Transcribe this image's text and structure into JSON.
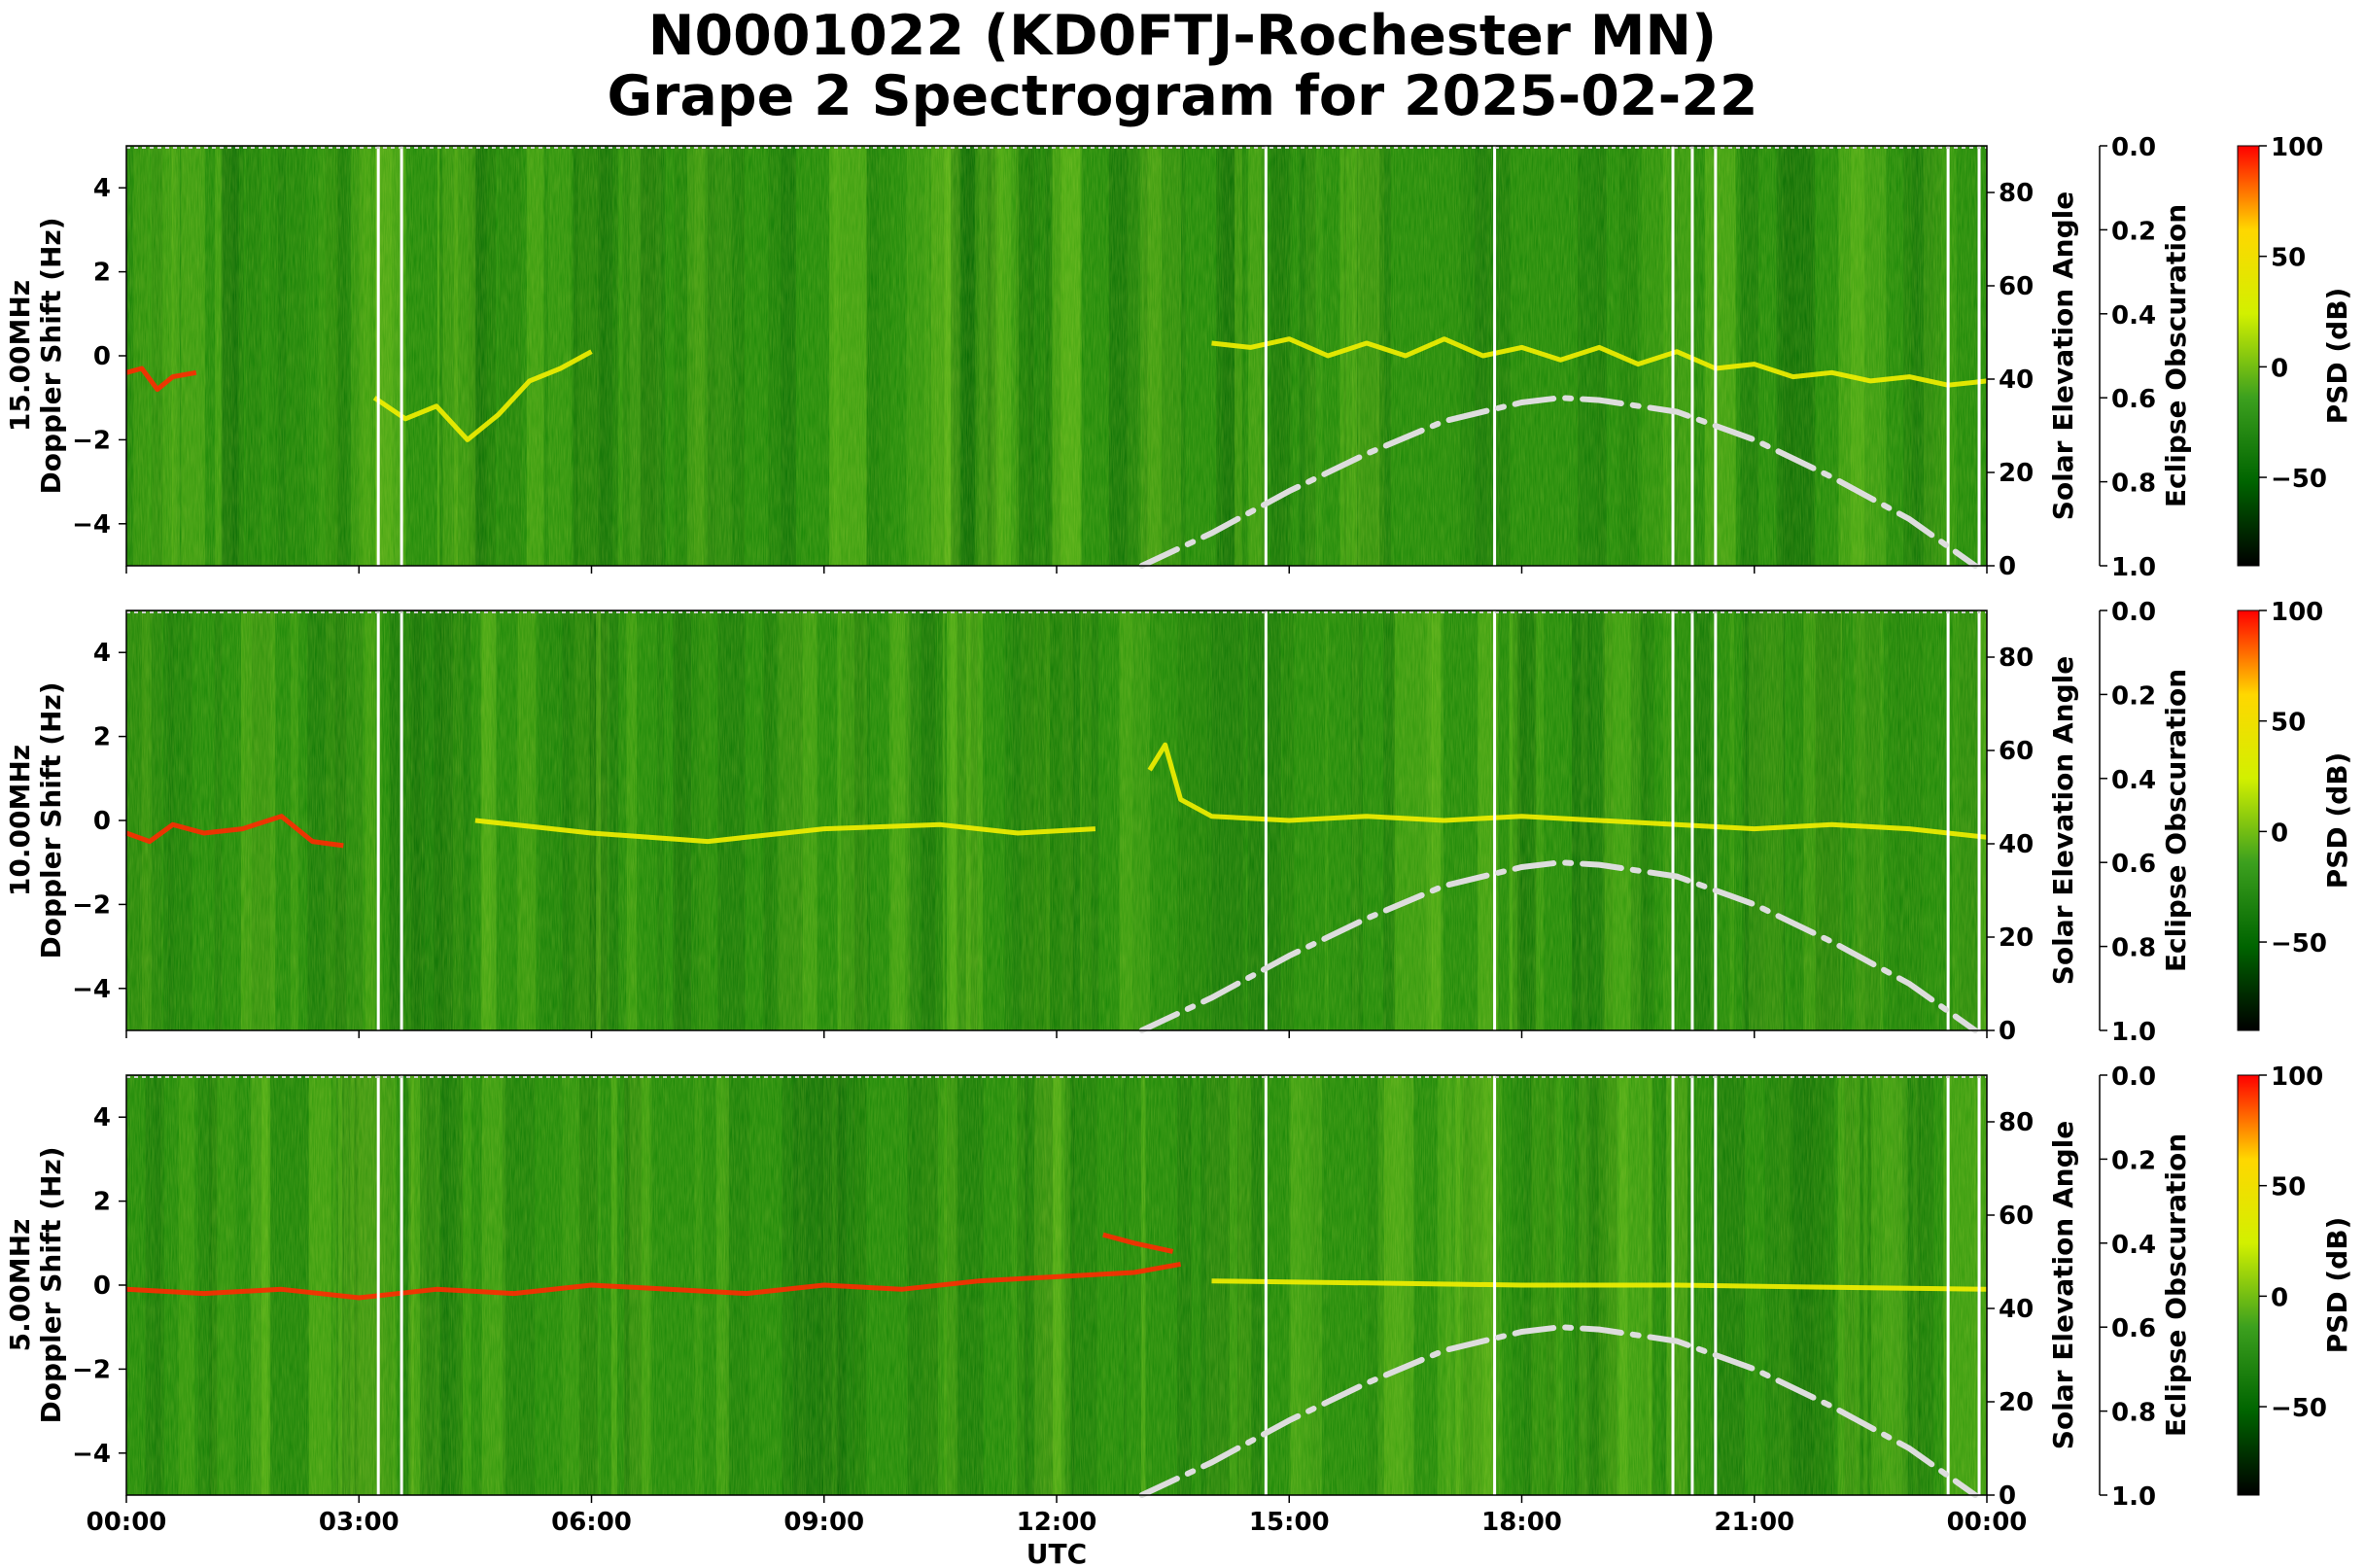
{
  "title_line1": "N0001022 (KD0FTJ-Rochester MN)",
  "title_line2": "Grape 2 Spectrogram for 2025-02-22",
  "chart_data": {
    "type": "heatmap",
    "title": "N0001022 (KD0FTJ-Rochester MN) Grape 2 Spectrogram for 2025-02-22",
    "xlabel": "UTC",
    "x_tick_labels": [
      "00:00",
      "03:00",
      "06:00",
      "09:00",
      "12:00",
      "15:00",
      "18:00",
      "21:00",
      "00:00"
    ],
    "xlim_hours": [
      0,
      24
    ],
    "ylabel_suffix": "Doppler Shift (Hz)",
    "ylim": [
      -5,
      5
    ],
    "y_ticks": [
      4,
      2,
      0,
      -2,
      -4
    ],
    "y2_label": "Solar Elevation Angle",
    "y2_lim": [
      0,
      90
    ],
    "y2_ticks": [
      0,
      20,
      40,
      60,
      80
    ],
    "y3_label": "Eclipse Obscuration",
    "y3_lim": [
      0.0,
      1.0
    ],
    "y3_ticks": [
      "0.0",
      "0.2",
      "0.4",
      "0.6",
      "0.8",
      "1.0"
    ],
    "colorbar_label": "PSD (dB)",
    "colorbar_range": [
      -90,
      100
    ],
    "colorbar_ticks": [
      100,
      50,
      0,
      -50
    ],
    "colorbar_tick_labels": [
      "100",
      "50",
      "0",
      "−50"
    ],
    "colormap": [
      "#000000",
      "#006400",
      "#3ca01e",
      "#d2f000",
      "#ffd700",
      "#ff0000"
    ],
    "gap_lines_hours": [
      3.25,
      3.55,
      14.7,
      17.65,
      19.95,
      20.2,
      20.5,
      23.5,
      23.9
    ],
    "solar_elevation": {
      "style": "dash-dot",
      "color": "#dddddd",
      "points": [
        [
          13.1,
          0
        ],
        [
          14,
          7
        ],
        [
          15,
          16
        ],
        [
          16,
          24
        ],
        [
          17,
          31
        ],
        [
          18,
          35
        ],
        [
          18.5,
          36
        ],
        [
          19,
          35.5
        ],
        [
          20,
          33
        ],
        [
          21,
          27
        ],
        [
          22,
          19
        ],
        [
          23,
          10
        ],
        [
          23.85,
          0
        ]
      ]
    },
    "panels": [
      {
        "frequency": "15.00MHz",
        "ylabel": "15.00MHz\nDoppler Shift (Hz)",
        "traces": [
          {
            "level": "red",
            "points": [
              [
                0,
                -0.4
              ],
              [
                0.2,
                -0.3
              ],
              [
                0.4,
                -0.8
              ],
              [
                0.6,
                -0.5
              ],
              [
                0.9,
                -0.4
              ]
            ]
          },
          {
            "level": "yellow",
            "points": [
              [
                3.2,
                -1.0
              ],
              [
                3.6,
                -1.5
              ],
              [
                4.0,
                -1.2
              ],
              [
                4.4,
                -2.0
              ],
              [
                4.8,
                -1.4
              ],
              [
                5.2,
                -0.6
              ],
              [
                5.6,
                -0.3
              ],
              [
                6.0,
                0.1
              ]
            ]
          },
          {
            "level": "yellow",
            "points": [
              [
                14.0,
                0.3
              ],
              [
                14.5,
                0.2
              ],
              [
                15.0,
                0.4
              ],
              [
                15.5,
                0.0
              ],
              [
                16.0,
                0.3
              ],
              [
                16.5,
                0.0
              ],
              [
                17.0,
                0.4
              ],
              [
                17.5,
                0.0
              ],
              [
                18.0,
                0.2
              ],
              [
                18.5,
                -0.1
              ],
              [
                19.0,
                0.2
              ],
              [
                19.5,
                -0.2
              ],
              [
                20.0,
                0.1
              ],
              [
                20.5,
                -0.3
              ],
              [
                21.0,
                -0.2
              ],
              [
                21.5,
                -0.5
              ],
              [
                22.0,
                -0.4
              ],
              [
                22.5,
                -0.6
              ],
              [
                23.0,
                -0.5
              ],
              [
                23.5,
                -0.7
              ],
              [
                24.0,
                -0.6
              ]
            ]
          }
        ]
      },
      {
        "frequency": "10.00MHz",
        "ylabel": "10.00MHz\nDoppler Shift (Hz)",
        "traces": [
          {
            "level": "red",
            "points": [
              [
                0,
                -0.3
              ],
              [
                0.3,
                -0.5
              ],
              [
                0.6,
                -0.1
              ],
              [
                1.0,
                -0.3
              ],
              [
                1.5,
                -0.2
              ],
              [
                2.0,
                0.1
              ],
              [
                2.4,
                -0.5
              ],
              [
                2.8,
                -0.6
              ]
            ]
          },
          {
            "level": "yellow",
            "points": [
              [
                4.5,
                0.0
              ],
              [
                6.0,
                -0.3
              ],
              [
                7.5,
                -0.5
              ],
              [
                9.0,
                -0.2
              ],
              [
                10.5,
                -0.1
              ],
              [
                11.5,
                -0.3
              ],
              [
                12.5,
                -0.2
              ]
            ]
          },
          {
            "level": "yellow",
            "points": [
              [
                13.2,
                1.2
              ],
              [
                13.4,
                1.8
              ],
              [
                13.6,
                0.5
              ],
              [
                14.0,
                0.1
              ],
              [
                15.0,
                0.0
              ],
              [
                16.0,
                0.1
              ],
              [
                17.0,
                0.0
              ],
              [
                18.0,
                0.1
              ],
              [
                19.0,
                0.0
              ],
              [
                20.0,
                -0.1
              ],
              [
                21.0,
                -0.2
              ],
              [
                22.0,
                -0.1
              ],
              [
                23.0,
                -0.2
              ],
              [
                24.0,
                -0.4
              ]
            ]
          }
        ]
      },
      {
        "frequency": "5.00MHz",
        "ylabel": "5.00MHz\nDoppler Shift (Hz)",
        "traces": [
          {
            "level": "red",
            "points": [
              [
                0,
                -0.1
              ],
              [
                1.0,
                -0.2
              ],
              [
                2.0,
                -0.1
              ],
              [
                3.0,
                -0.3
              ],
              [
                4.0,
                -0.1
              ],
              [
                5.0,
                -0.2
              ],
              [
                6.0,
                0.0
              ],
              [
                7.0,
                -0.1
              ],
              [
                8.0,
                -0.2
              ],
              [
                9.0,
                0.0
              ],
              [
                10.0,
                -0.1
              ],
              [
                11.0,
                0.1
              ],
              [
                12.0,
                0.2
              ],
              [
                13.0,
                0.3
              ],
              [
                13.6,
                0.5
              ]
            ]
          },
          {
            "level": "red",
            "points": [
              [
                12.6,
                1.2
              ],
              [
                13.0,
                1.0
              ],
              [
                13.5,
                0.8
              ]
            ]
          },
          {
            "level": "yellow",
            "points": [
              [
                14.0,
                0.1
              ],
              [
                16.0,
                0.05
              ],
              [
                18.0,
                0.0
              ],
              [
                20.0,
                0.0
              ],
              [
                22.0,
                -0.05
              ],
              [
                24.0,
                -0.1
              ]
            ]
          }
        ]
      }
    ]
  }
}
